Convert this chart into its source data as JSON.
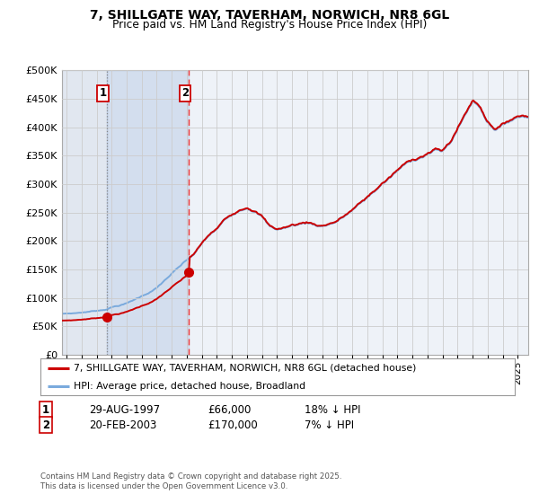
{
  "title_line1": "7, SHILLGATE WAY, TAVERHAM, NORWICH, NR8 6GL",
  "title_line2": "Price paid vs. HM Land Registry's House Price Index (HPI)",
  "background_color": "#ffffff",
  "plot_bg_color": "#eef2f8",
  "grid_color": "#cccccc",
  "red_line_color": "#cc0000",
  "blue_line_color": "#7aaadd",
  "transaction1_date": "29-AUG-1997",
  "transaction1_price": 66000,
  "transaction1_hpi_diff": "18% ↓ HPI",
  "transaction2_date": "20-FEB-2003",
  "transaction2_price": 170000,
  "transaction2_hpi_diff": "7% ↓ HPI",
  "legend_red": "7, SHILLGATE WAY, TAVERHAM, NORWICH, NR8 6GL (detached house)",
  "legend_blue": "HPI: Average price, detached house, Broadland",
  "footer": "Contains HM Land Registry data © Crown copyright and database right 2025.\nThis data is licensed under the Open Government Licence v3.0.",
  "ylim": [
    0,
    500000
  ],
  "yticks": [
    0,
    50000,
    100000,
    150000,
    200000,
    250000,
    300000,
    350000,
    400000,
    450000,
    500000
  ],
  "xlim_start": 1994.7,
  "xlim_end": 2025.7,
  "transaction1_x": 1997.66,
  "transaction2_x": 2003.13,
  "hpi_key_x": [
    1994.7,
    1995.5,
    1996.5,
    1997.0,
    1997.5,
    1998.0,
    1999.0,
    2000.0,
    2001.0,
    2002.0,
    2003.0,
    2003.5,
    2004.0,
    2004.5,
    2005.0,
    2005.5,
    2006.0,
    2006.5,
    2007.0,
    2007.5,
    2008.0,
    2008.5,
    2009.0,
    2009.5,
    2010.0,
    2010.5,
    2011.0,
    2011.5,
    2012.0,
    2012.5,
    2013.0,
    2013.5,
    2014.0,
    2014.5,
    2015.0,
    2015.5,
    2016.0,
    2016.5,
    2017.0,
    2017.5,
    2018.0,
    2018.5,
    2019.0,
    2019.5,
    2020.0,
    2020.5,
    2021.0,
    2021.5,
    2022.0,
    2022.5,
    2023.0,
    2023.5,
    2024.0,
    2024.5,
    2025.0,
    2025.5
  ],
  "hpi_key_y": [
    72000,
    73000,
    76000,
    78000,
    80000,
    85000,
    92000,
    105000,
    120000,
    145000,
    167000,
    178000,
    195000,
    210000,
    220000,
    235000,
    245000,
    255000,
    262000,
    258000,
    248000,
    230000,
    225000,
    228000,
    232000,
    235000,
    238000,
    235000,
    233000,
    238000,
    243000,
    252000,
    262000,
    272000,
    283000,
    295000,
    308000,
    318000,
    330000,
    340000,
    348000,
    355000,
    362000,
    368000,
    365000,
    380000,
    405000,
    430000,
    455000,
    445000,
    420000,
    410000,
    415000,
    425000,
    432000,
    435000
  ]
}
